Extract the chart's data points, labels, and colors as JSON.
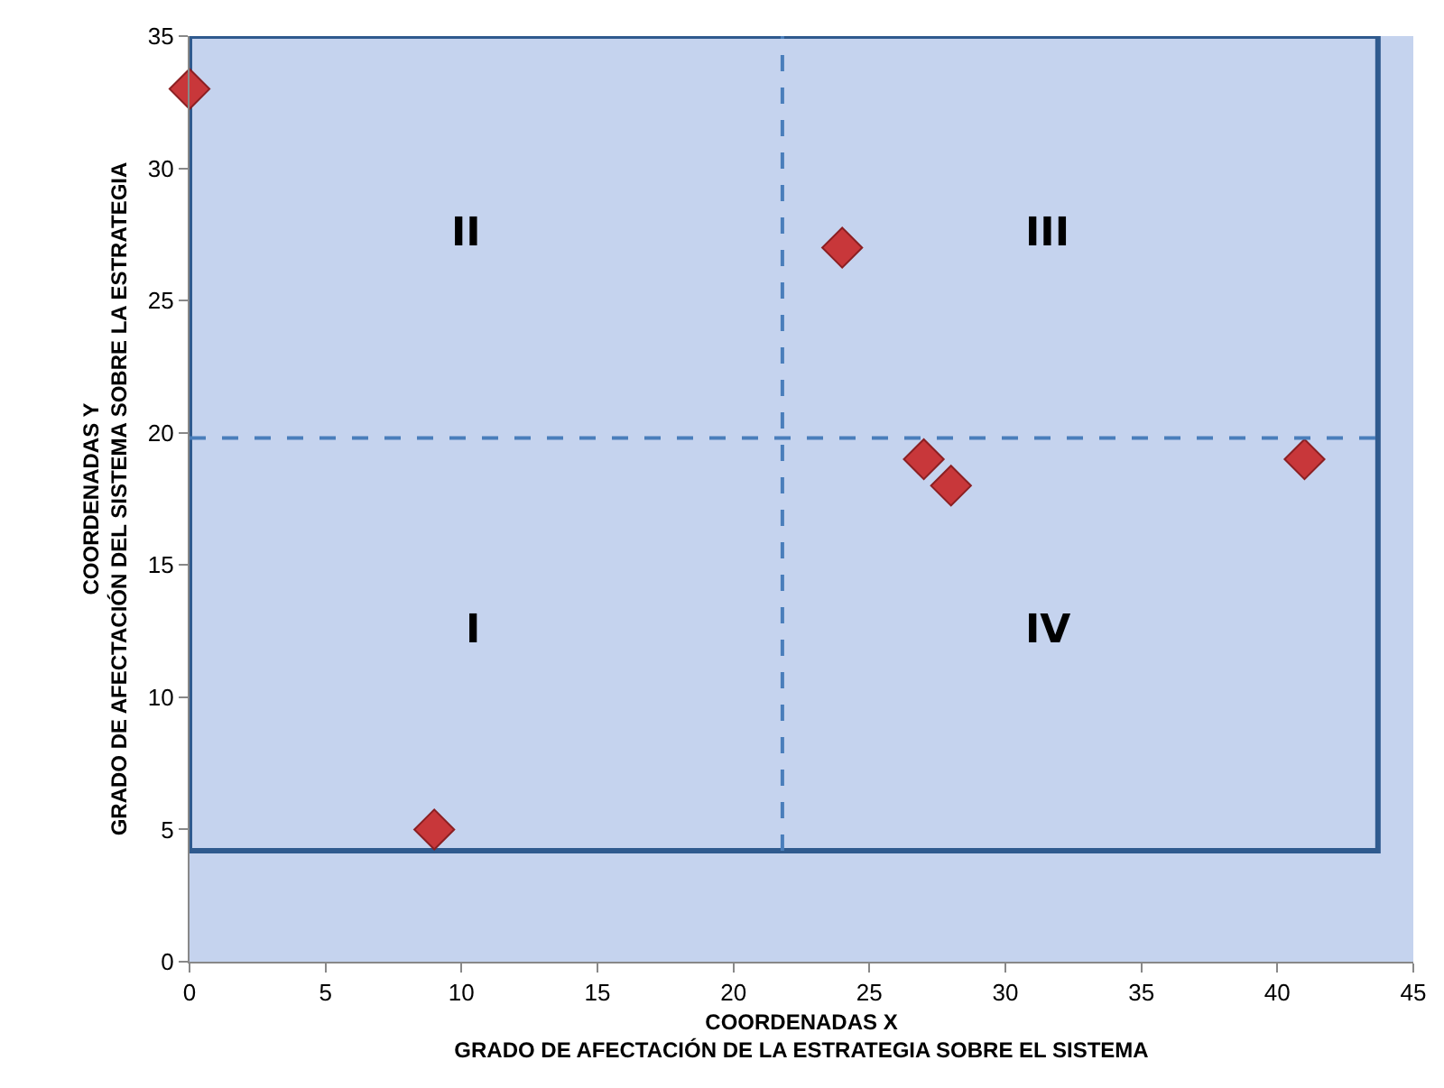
{
  "chart_data": {
    "type": "scatter",
    "xlabel": "COORDENADAS X\nGRADO DE AFECTACIÓN DE LA ESTRATEGIA SOBRE EL SISTEMA",
    "ylabel": "COORDENADAS Y\nGRADO DE AFECTACIÓN DEL SISTEMA SOBRE LA ESTRATEGIA",
    "x": [
      0,
      24,
      27,
      28,
      41,
      9
    ],
    "series": [
      {
        "color": "#c8373a",
        "values": [
          33,
          27,
          19,
          18,
          19,
          5
        ]
      }
    ],
    "marker": "diamond",
    "grid": false,
    "xlim": [
      0,
      45
    ],
    "xticks": [
      0,
      5,
      10,
      15,
      20,
      25,
      30,
      35,
      40,
      45
    ],
    "ylim": [
      0,
      35
    ],
    "yticks": [
      0,
      5,
      10,
      15,
      20,
      25,
      30,
      35
    ],
    "ref_lines": [
      {
        "axis": "x",
        "value": 21.8,
        "color": "#4a7ebb",
        "line_style": "dashed"
      },
      {
        "axis": "y",
        "value": 19.8,
        "color": "#4a7ebb",
        "line_style": "dashed"
      }
    ],
    "annotations": [
      "I",
      "II",
      "III",
      "IV"
    ]
  }
}
